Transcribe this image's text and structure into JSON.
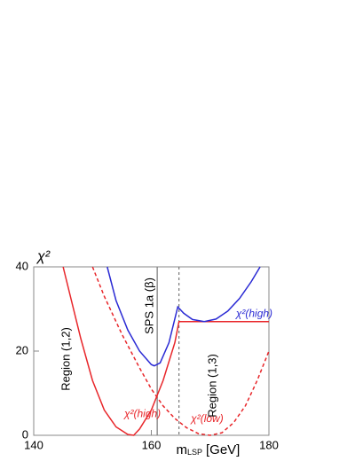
{
  "chart_data": {
    "type": "line",
    "ylabel": "χ²",
    "xlabel": {
      "main": "m",
      "sub": "LSP",
      "unit": "[GeV]"
    },
    "xlim": [
      140,
      180
    ],
    "ylim": [
      0,
      40
    ],
    "xticks": [
      140,
      160,
      180
    ],
    "yticks": [
      0,
      20,
      40
    ],
    "series": [
      {
        "name": "χ²(high)",
        "color": "#e8262a",
        "dash": false,
        "x": [
          145,
          148,
          150,
          152,
          154,
          156,
          157,
          158,
          160,
          162,
          164,
          164.7,
          170,
          180
        ],
        "values": [
          40,
          23,
          13,
          6,
          2,
          0.2,
          0,
          1.5,
          6,
          13,
          22,
          27,
          27,
          27
        ]
      },
      {
        "name": "χ²(high)",
        "color": "#2a2ad4",
        "dash": false,
        "x": [
          152.5,
          154,
          156,
          158,
          160,
          160.5,
          161.5,
          163,
          164.5,
          165.5,
          167,
          169,
          171,
          173,
          175,
          177,
          178.5
        ],
        "values": [
          40,
          32,
          25,
          20,
          16.8,
          16.5,
          17.2,
          22,
          30.5,
          29,
          27.5,
          27,
          27.6,
          29.5,
          32.5,
          36.5,
          40
        ]
      },
      {
        "name": "χ²(low)",
        "color": "#e8262a",
        "dash": true,
        "x": [
          150,
          152,
          155,
          158,
          160,
          162,
          164,
          166,
          168,
          170,
          172,
          174,
          176,
          178,
          180
        ],
        "values": [
          40,
          33,
          24,
          16,
          11,
          7,
          4,
          1.8,
          0.4,
          0,
          0.6,
          3,
          7,
          13,
          20
        ]
      }
    ],
    "vlines": [
      {
        "x": 161,
        "label": "SPS 1a (β)",
        "dash": false
      },
      {
        "x": 164.7,
        "dash": true
      }
    ],
    "annotations": [
      "Region (1,2)",
      "Region (1,3)"
    ]
  }
}
